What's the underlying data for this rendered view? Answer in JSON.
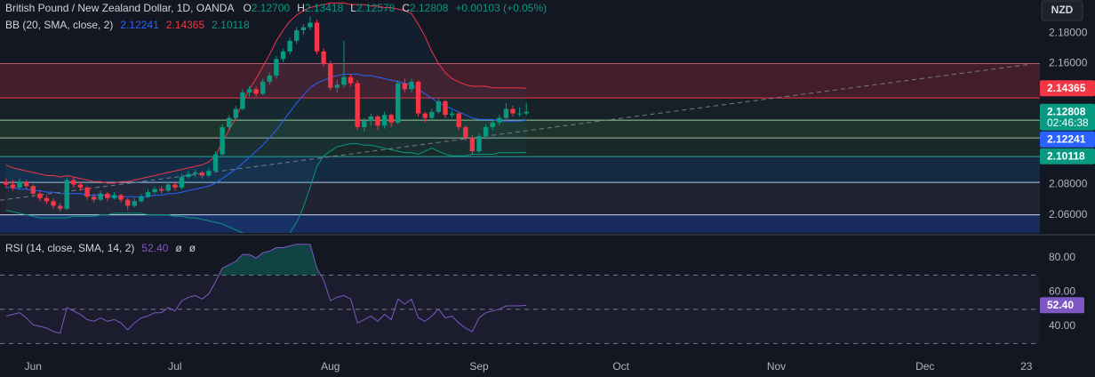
{
  "chart_data": {
    "type": "candlestick",
    "legend": {
      "title": "British Pound / New Zealand Dollar, 1D, OANDA",
      "fields": [
        {
          "key": "O",
          "value": "2.12700"
        },
        {
          "key": "H",
          "value": "2.13418"
        },
        {
          "key": "L",
          "value": "2.12578"
        },
        {
          "key": "C",
          "value": "2.12808"
        }
      ],
      "change": "+0.00103 (+0.05%)",
      "color": "#089981"
    },
    "currency": "NZD",
    "xlim": [
      -0.9,
      153
    ],
    "xticks": [
      {
        "value": 4,
        "label": "Jun"
      },
      {
        "value": 25,
        "label": "Jul"
      },
      {
        "value": 48,
        "label": "Aug"
      },
      {
        "value": 70,
        "label": "Sep"
      },
      {
        "value": 91,
        "label": "Oct"
      },
      {
        "value": 114,
        "label": "Nov"
      },
      {
        "value": 136,
        "label": "Dec"
      },
      {
        "value": 151,
        "label": "23"
      }
    ],
    "ylim": [
      2.048,
      2.202
    ],
    "yticks": [
      {
        "value": 2.18,
        "label": "2.18000"
      },
      {
        "value": 2.16,
        "label": "2.16000"
      },
      {
        "value": 2.08,
        "label": "2.08000"
      },
      {
        "value": 2.06,
        "label": "2.06000"
      }
    ],
    "up_color": "#089981",
    "down_color": "#f23645",
    "ohlc": [
      [
        2.082,
        2.084,
        2.078,
        2.08
      ],
      [
        2.08,
        2.083,
        2.076,
        2.078
      ],
      [
        2.078,
        2.084,
        2.077,
        2.082
      ],
      [
        2.082,
        2.083,
        2.077,
        2.079
      ],
      [
        2.079,
        2.08,
        2.072,
        2.074
      ],
      [
        2.074,
        2.076,
        2.069,
        2.071
      ],
      [
        2.071,
        2.073,
        2.067,
        2.069
      ],
      [
        2.069,
        2.071,
        2.064,
        2.066
      ],
      [
        2.066,
        2.068,
        2.062,
        2.064
      ],
      [
        2.064,
        2.085,
        2.063,
        2.083
      ],
      [
        2.083,
        2.085,
        2.078,
        2.08
      ],
      [
        2.08,
        2.082,
        2.076,
        2.078
      ],
      [
        2.078,
        2.079,
        2.07,
        2.072
      ],
      [
        2.072,
        2.074,
        2.068,
        2.07
      ],
      [
        2.07,
        2.076,
        2.069,
        2.074
      ],
      [
        2.074,
        2.075,
        2.069,
        2.071
      ],
      [
        2.071,
        2.075,
        2.07,
        2.073
      ],
      [
        2.073,
        2.074,
        2.068,
        2.07
      ],
      [
        2.07,
        2.071,
        2.063,
        2.066
      ],
      [
        2.066,
        2.071,
        2.065,
        2.069
      ],
      [
        2.069,
        2.074,
        2.068,
        2.072
      ],
      [
        2.072,
        2.077,
        2.071,
        2.075
      ],
      [
        2.075,
        2.079,
        2.074,
        2.077
      ],
      [
        2.077,
        2.079,
        2.074,
        2.076
      ],
      [
        2.076,
        2.082,
        2.075,
        2.08
      ],
      [
        2.08,
        2.081,
        2.076,
        2.078
      ],
      [
        2.078,
        2.087,
        2.077,
        2.085
      ],
      [
        2.085,
        2.089,
        2.084,
        2.087
      ],
      [
        2.087,
        2.09,
        2.085,
        2.088
      ],
      [
        2.088,
        2.089,
        2.084,
        2.086
      ],
      [
        2.086,
        2.091,
        2.085,
        2.089
      ],
      [
        2.089,
        2.102,
        2.088,
        2.1
      ],
      [
        2.1,
        2.12,
        2.099,
        2.118
      ],
      [
        2.118,
        2.126,
        2.116,
        2.124
      ],
      [
        2.124,
        2.132,
        2.122,
        2.13
      ],
      [
        2.13,
        2.143,
        2.129,
        2.141
      ],
      [
        2.141,
        2.145,
        2.138,
        2.143
      ],
      [
        2.143,
        2.145,
        2.138,
        2.14
      ],
      [
        2.14,
        2.15,
        2.139,
        2.148
      ],
      [
        2.148,
        2.154,
        2.146,
        2.152
      ],
      [
        2.152,
        2.165,
        2.15,
        2.163
      ],
      [
        2.163,
        2.17,
        2.161,
        2.168
      ],
      [
        2.168,
        2.177,
        2.166,
        2.175
      ],
      [
        2.175,
        2.184,
        2.173,
        2.182
      ],
      [
        2.182,
        2.186,
        2.179,
        2.184
      ],
      [
        2.184,
        2.191,
        2.182,
        2.187
      ],
      [
        2.187,
        2.189,
        2.166,
        2.168
      ],
      [
        2.168,
        2.17,
        2.158,
        2.16
      ],
      [
        2.16,
        2.162,
        2.142,
        2.144
      ],
      [
        2.144,
        2.149,
        2.141,
        2.146
      ],
      [
        2.146,
        2.175,
        2.144,
        2.151
      ],
      [
        2.151,
        2.153,
        2.145,
        2.147
      ],
      [
        2.147,
        2.149,
        2.116,
        2.118
      ],
      [
        2.118,
        2.124,
        2.115,
        2.122
      ],
      [
        2.122,
        2.127,
        2.119,
        2.125
      ],
      [
        2.125,
        2.126,
        2.116,
        2.119
      ],
      [
        2.119,
        2.128,
        2.117,
        2.126
      ],
      [
        2.126,
        2.127,
        2.118,
        2.121
      ],
      [
        2.121,
        2.149,
        2.12,
        2.147
      ],
      [
        2.147,
        2.15,
        2.141,
        2.143
      ],
      [
        2.143,
        2.15,
        2.141,
        2.148
      ],
      [
        2.148,
        2.149,
        2.125,
        2.127
      ],
      [
        2.127,
        2.128,
        2.121,
        2.124
      ],
      [
        2.124,
        2.13,
        2.122,
        2.128
      ],
      [
        2.128,
        2.137,
        2.127,
        2.135
      ],
      [
        2.135,
        2.136,
        2.124,
        2.126
      ],
      [
        2.126,
        2.129,
        2.124,
        2.127
      ],
      [
        2.127,
        2.128,
        2.116,
        2.118
      ],
      [
        2.118,
        2.119,
        2.109,
        2.111
      ],
      [
        2.111,
        2.113,
        2.1,
        2.102
      ],
      [
        2.102,
        2.114,
        2.101,
        2.112
      ],
      [
        2.112,
        2.12,
        2.11,
        2.118
      ],
      [
        2.118,
        2.123,
        2.116,
        2.121
      ],
      [
        2.121,
        2.126,
        2.119,
        2.124
      ],
      [
        2.124,
        2.134,
        2.122,
        2.13
      ],
      [
        2.13,
        2.132,
        2.125,
        2.127
      ],
      [
        2.127,
        2.131,
        2.125,
        2.127
      ],
      [
        2.127,
        2.13418,
        2.12578,
        2.12808
      ]
    ],
    "bb": {
      "name": "BB (20, SMA, close, 2)",
      "legend_values": [
        "2.12241",
        "2.14365",
        "2.10118"
      ],
      "colors": {
        "basis": "#2962ff",
        "upper": "#f23645",
        "lower": "#089981",
        "fill": "rgba(33,150,243,0.06)"
      },
      "upper": [
        2.093,
        2.091,
        2.09,
        2.089,
        2.088,
        2.087,
        2.086,
        2.086,
        2.085,
        2.086,
        2.085,
        2.084,
        2.083,
        2.082,
        2.082,
        2.081,
        2.081,
        2.082,
        2.082,
        2.083,
        2.084,
        2.085,
        2.086,
        2.087,
        2.088,
        2.089,
        2.09,
        2.091,
        2.092,
        2.093,
        2.095,
        2.099,
        2.108,
        2.116,
        2.124,
        2.134,
        2.143,
        2.15,
        2.158,
        2.166,
        2.175,
        2.182,
        2.188,
        2.192,
        2.195,
        2.197,
        2.198,
        2.199,
        2.2,
        2.2,
        2.2,
        2.199,
        2.199,
        2.199,
        2.198,
        2.198,
        2.197,
        2.197,
        2.196,
        2.195,
        2.193,
        2.186,
        2.178,
        2.168,
        2.16,
        2.154,
        2.15,
        2.148,
        2.146,
        2.145,
        2.145,
        2.145,
        2.144,
        2.144,
        2.144,
        2.144,
        2.144,
        2.14365
      ],
      "basis": [
        2.078,
        2.078,
        2.077,
        2.077,
        2.076,
        2.076,
        2.075,
        2.075,
        2.074,
        2.074,
        2.074,
        2.074,
        2.073,
        2.073,
        2.073,
        2.073,
        2.072,
        2.072,
        2.072,
        2.072,
        2.072,
        2.072,
        2.073,
        2.073,
        2.074,
        2.074,
        2.075,
        2.076,
        2.077,
        2.078,
        2.079,
        2.081,
        2.084,
        2.087,
        2.09,
        2.094,
        2.098,
        2.102,
        2.106,
        2.111,
        2.116,
        2.122,
        2.128,
        2.134,
        2.139,
        2.144,
        2.147,
        2.149,
        2.151,
        2.152,
        2.153,
        2.153,
        2.153,
        2.152,
        2.152,
        2.151,
        2.15,
        2.149,
        2.148,
        2.147,
        2.146,
        2.143,
        2.14,
        2.137,
        2.134,
        2.132,
        2.13,
        2.128,
        2.126,
        2.124,
        2.123,
        2.123,
        2.123,
        2.122,
        2.122,
        2.122,
        2.122,
        2.12241
      ],
      "lower": [
        2.063,
        2.062,
        2.061,
        2.06,
        2.059,
        2.058,
        2.058,
        2.058,
        2.058,
        2.058,
        2.059,
        2.059,
        2.059,
        2.059,
        2.06,
        2.06,
        2.061,
        2.061,
        2.061,
        2.061,
        2.061,
        2.06,
        2.06,
        2.06,
        2.06,
        2.059,
        2.059,
        2.058,
        2.058,
        2.057,
        2.056,
        2.055,
        2.054,
        2.052,
        2.05,
        2.048,
        2.047,
        2.046,
        2.045,
        2.044,
        2.044,
        2.045,
        2.048,
        2.055,
        2.065,
        2.078,
        2.092,
        2.099,
        2.102,
        2.105,
        2.106,
        2.107,
        2.107,
        2.106,
        2.106,
        2.105,
        2.104,
        2.103,
        2.102,
        2.101,
        2.101,
        2.1,
        2.102,
        2.104,
        2.102,
        2.1,
        2.099,
        2.099,
        2.099,
        2.1,
        2.1,
        2.1,
        2.1,
        2.101,
        2.101,
        2.101,
        2.101,
        2.10118
      ]
    },
    "zones": [
      {
        "from": 2.16,
        "to": 2.1373,
        "color": "rgba(242,54,69,0.22)"
      },
      {
        "from": 2.1373,
        "to": 2.1226,
        "color": "rgba(76,175,80,0.07)"
      },
      {
        "from": 2.1226,
        "to": 2.1108,
        "color": "rgba(76,175,80,0.2)"
      },
      {
        "from": 2.1108,
        "to": 2.0985,
        "color": "rgba(76,175,80,0.12)"
      },
      {
        "from": 2.0985,
        "to": 2.0814,
        "color": "rgba(33,150,243,0.16)"
      },
      {
        "from": 2.0814,
        "to": 2.06,
        "color": "rgba(120,123,134,0.14)"
      },
      {
        "from": 2.06,
        "to": 2.048,
        "color": "rgba(41,98,255,0.28)"
      }
    ],
    "levels": [
      {
        "value": 2.16,
        "color": "#b05a6a"
      },
      {
        "value": 2.1373,
        "color": "#f23645"
      },
      {
        "value": 2.1226,
        "color": "#9ccc9c"
      },
      {
        "value": 2.1108,
        "color": "#a5b9a8"
      },
      {
        "value": 2.0985,
        "color": "#26a69a"
      },
      {
        "value": 2.0814,
        "color": "#a9c8e8"
      },
      {
        "value": 2.06,
        "color": "#c8d4f0"
      }
    ],
    "trend_line": {
      "from": [
        -0.9,
        2.0696
      ],
      "to": [
        151.7,
        2.1596
      ],
      "color": "#787b86"
    },
    "price_labels": [
      {
        "value": 2.14365,
        "label": "2.14365",
        "color": "#f23645"
      },
      {
        "value": 2.12808,
        "label": "2.12808",
        "countdown": "02:46:38",
        "color": "#089981"
      },
      {
        "value": 2.12241,
        "label": "2.12241",
        "color": "#2962ff"
      },
      {
        "value": 2.10118,
        "label": "2.10118",
        "color": "#089981"
      }
    ],
    "rsi": {
      "name": "RSI (14, close, SMA, 14, 2)",
      "color": "#7e57c2",
      "legend_extra": [
        "ø",
        "ø"
      ],
      "ylim": [
        22.9,
        92.5
      ],
      "yticks": [
        {
          "value": 80,
          "label": "80.00"
        },
        {
          "value": 60,
          "label": "60.00"
        },
        {
          "value": 40,
          "label": "40.00"
        }
      ],
      "bands": [
        70,
        50,
        30
      ],
      "values": [
        46,
        47,
        48,
        45,
        41,
        40,
        39,
        37,
        36,
        51,
        49,
        47,
        44,
        43,
        45,
        43,
        44,
        42,
        38,
        42,
        45,
        46,
        48,
        48,
        51,
        49,
        55,
        57,
        58,
        56,
        59,
        66,
        74,
        76,
        78,
        82,
        82,
        80,
        83,
        84,
        86,
        86,
        87,
        88,
        88,
        88,
        74,
        67,
        55,
        57,
        58,
        56,
        42,
        44,
        46,
        43,
        47,
        44,
        56,
        53,
        56,
        45,
        43,
        46,
        50,
        45,
        46,
        42,
        39,
        37,
        45,
        48,
        49,
        50,
        52,
        52,
        52,
        52.4
      ],
      "last": 52.4,
      "last_label": "52.40"
    }
  }
}
